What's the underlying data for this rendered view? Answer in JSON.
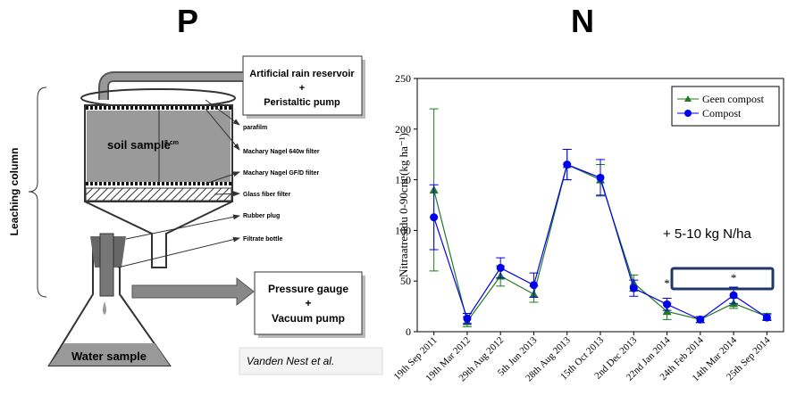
{
  "diagram": {
    "title": "P",
    "reservoir": [
      "Artificial rain reservoir",
      "+",
      "Peristaltic pump"
    ],
    "column_label": "soil sample",
    "height_label": "8 cm",
    "parts": [
      "parafilm",
      "Machary Nagel 640w filter",
      "Machary Nagel GF/D filter",
      "Glass fiber filter",
      "Rubber plug",
      "Filtrate bottle"
    ],
    "side_label": "Leaching column",
    "pump": [
      "Pressure gauge",
      "+",
      "Vacuum pump"
    ],
    "flask_label": "Water sample",
    "credit": "Vanden Nest et al."
  },
  "chart_data": {
    "type": "line",
    "title": "N",
    "ylabel": "Nitraatresidu 0-90cm (kg ha⁻¹)",
    "categories": [
      "19th Sep 2011",
      "19th Mar 2012",
      "29th Aug 2012",
      "5th Jun 2013",
      "28th Aug 2013",
      "15th Oct 2013",
      "2nd Dec 2013",
      "22nd Jan 2014",
      "24th Feb 2014",
      "14th Mar 2014",
      "25th Sep 2014"
    ],
    "series": [
      {
        "name": "Geen compost",
        "color": "#217a21",
        "marker": "triangle",
        "values": [
          140,
          10,
          55,
          37,
          165,
          150,
          48,
          20,
          12,
          28,
          15
        ],
        "errors": [
          80,
          5,
          10,
          8,
          15,
          15,
          8,
          8,
          3,
          5,
          3
        ]
      },
      {
        "name": "Compost",
        "color": "#0000ee",
        "marker": "circle",
        "values": [
          113,
          13,
          63,
          46,
          165,
          152,
          43,
          27,
          12,
          36,
          14
        ],
        "errors": [
          32,
          5,
          10,
          12,
          15,
          18,
          8,
          6,
          3,
          8,
          3
        ]
      }
    ],
    "ylim": [
      0,
      250
    ],
    "yticks": [
      0,
      50,
      100,
      150,
      200,
      250
    ],
    "legend": "upper right",
    "annotations": [
      "+ 5-10 kg N/ha",
      "*",
      "*"
    ]
  }
}
